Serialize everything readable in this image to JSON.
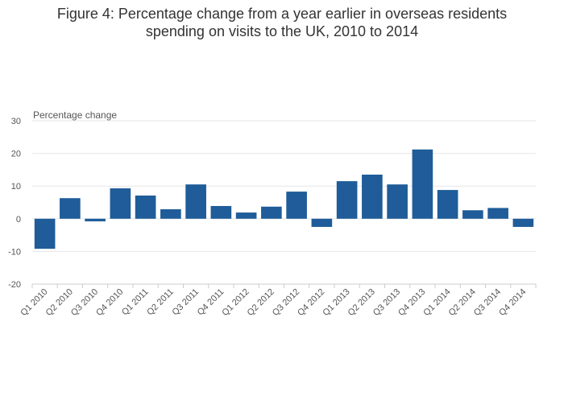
{
  "chart_data": {
    "type": "bar",
    "title_lines": [
      "Figure 4: Percentage change from a year earlier in overseas residents",
      "spending on visits to the UK, 2010 to 2014"
    ],
    "ylabel": "Percentage change",
    "xlabel": "",
    "ylim": [
      -20,
      30
    ],
    "yticks": [
      -20,
      -10,
      0,
      10,
      20,
      30
    ],
    "grid": true,
    "categories": [
      "Q1 2010",
      "Q2 2010",
      "Q3 2010",
      "Q4 2010",
      "Q1 2011",
      "Q2 2011",
      "Q3 2011",
      "Q4 2011",
      "Q1 2012",
      "Q2 2012",
      "Q3 2012",
      "Q4 2012",
      "Q1 2013",
      "Q2 2013",
      "Q3 2013",
      "Q4 2013",
      "Q1 2014",
      "Q2 2014",
      "Q3 2014",
      "Q4 2014"
    ],
    "values": [
      -9.2,
      6.3,
      -0.8,
      9.3,
      7.1,
      2.9,
      10.5,
      3.9,
      1.9,
      3.7,
      8.3,
      -2.5,
      11.5,
      13.5,
      10.5,
      21.2,
      8.8,
      2.6,
      3.3,
      -2.5
    ],
    "colors": {
      "bar": "#1f5c99",
      "grid": "#e6e6e6",
      "axis_text": "#555555"
    }
  }
}
